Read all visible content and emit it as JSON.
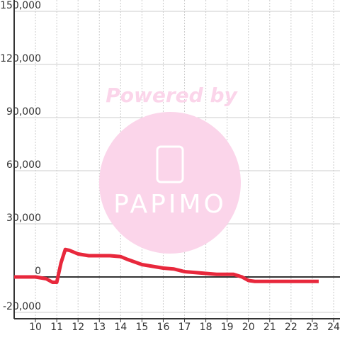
{
  "chart_data": {
    "type": "line",
    "x": [
      9,
      10,
      10.5,
      10.8,
      11.0,
      11.2,
      11.4,
      11.6,
      12,
      12.5,
      13,
      13.5,
      14,
      14.3,
      15,
      15.5,
      16,
      16.5,
      17,
      17.5,
      18,
      18.5,
      19,
      19.3,
      19.7,
      20,
      20.3,
      21,
      22,
      23,
      23.3
    ],
    "series": [
      {
        "color": "#e8283c",
        "values": [
          0,
          0,
          -1000,
          -3000,
          -3000,
          8000,
          15500,
          15000,
          13000,
          12000,
          12000,
          12000,
          11500,
          10000,
          7000,
          6000,
          5000,
          4500,
          3000,
          2500,
          2000,
          1500,
          1500,
          1500,
          0,
          -2000,
          -2500,
          -2500,
          -2500,
          -2500,
          -2500
        ]
      }
    ],
    "xlim": [
      9,
      24.3
    ],
    "xticks": [
      10,
      11,
      12,
      13,
      14,
      15,
      16,
      17,
      18,
      19,
      20,
      21,
      22,
      23,
      24
    ],
    "ylim": [
      -20000,
      150000
    ],
    "yticks": [
      {
        "value": -20000,
        "label": "-20,000"
      },
      0,
      {
        "value": 30000,
        "label": "30,000"
      },
      {
        "value": 60000,
        "label": "60,000"
      },
      {
        "value": 90000,
        "label": "90,000"
      },
      {
        "value": 120000,
        "label": "120,000"
      },
      {
        "value": 150000,
        "label": "150,000"
      }
    ],
    "grid": true,
    "watermark": {
      "text": "Powered by",
      "logo": "PAPIMO"
    }
  }
}
